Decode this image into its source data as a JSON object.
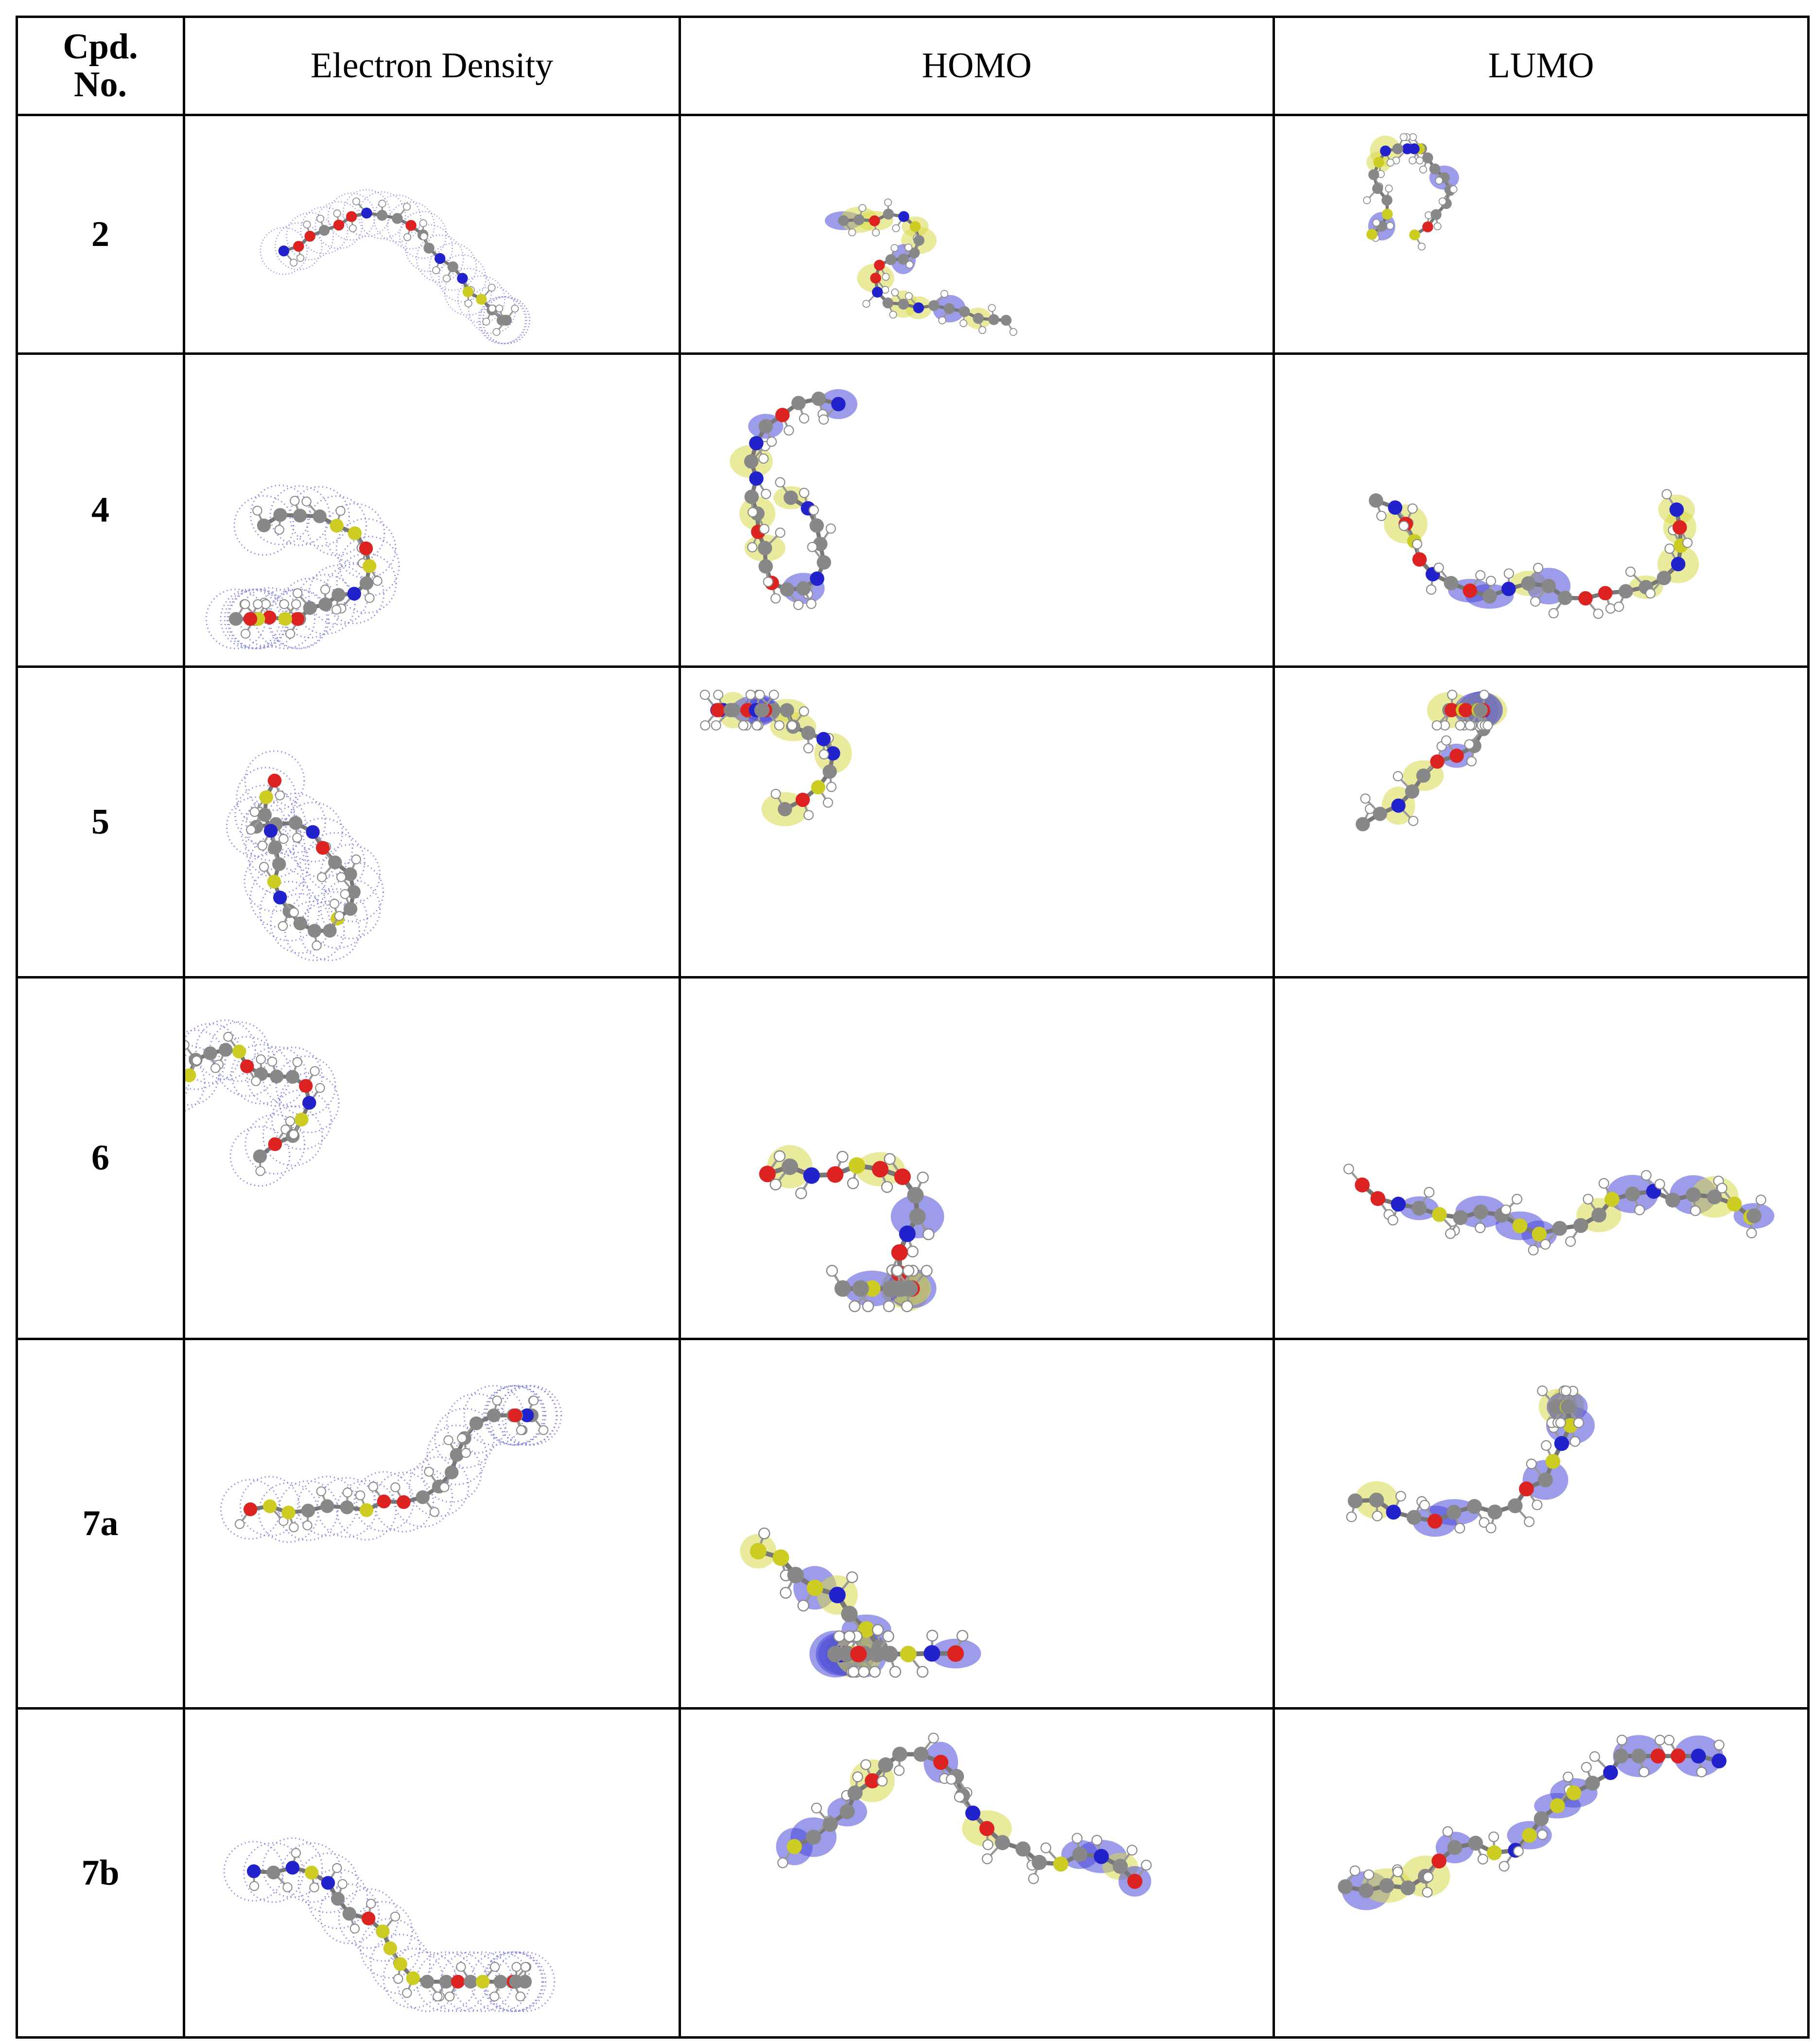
{
  "table": {
    "header": [
      "Cpd. No.",
      "Electron Density",
      "HOMO",
      "LUMO"
    ],
    "compounds": [
      "2",
      "4",
      "5",
      "6",
      "7a",
      "7b"
    ]
  }
}
